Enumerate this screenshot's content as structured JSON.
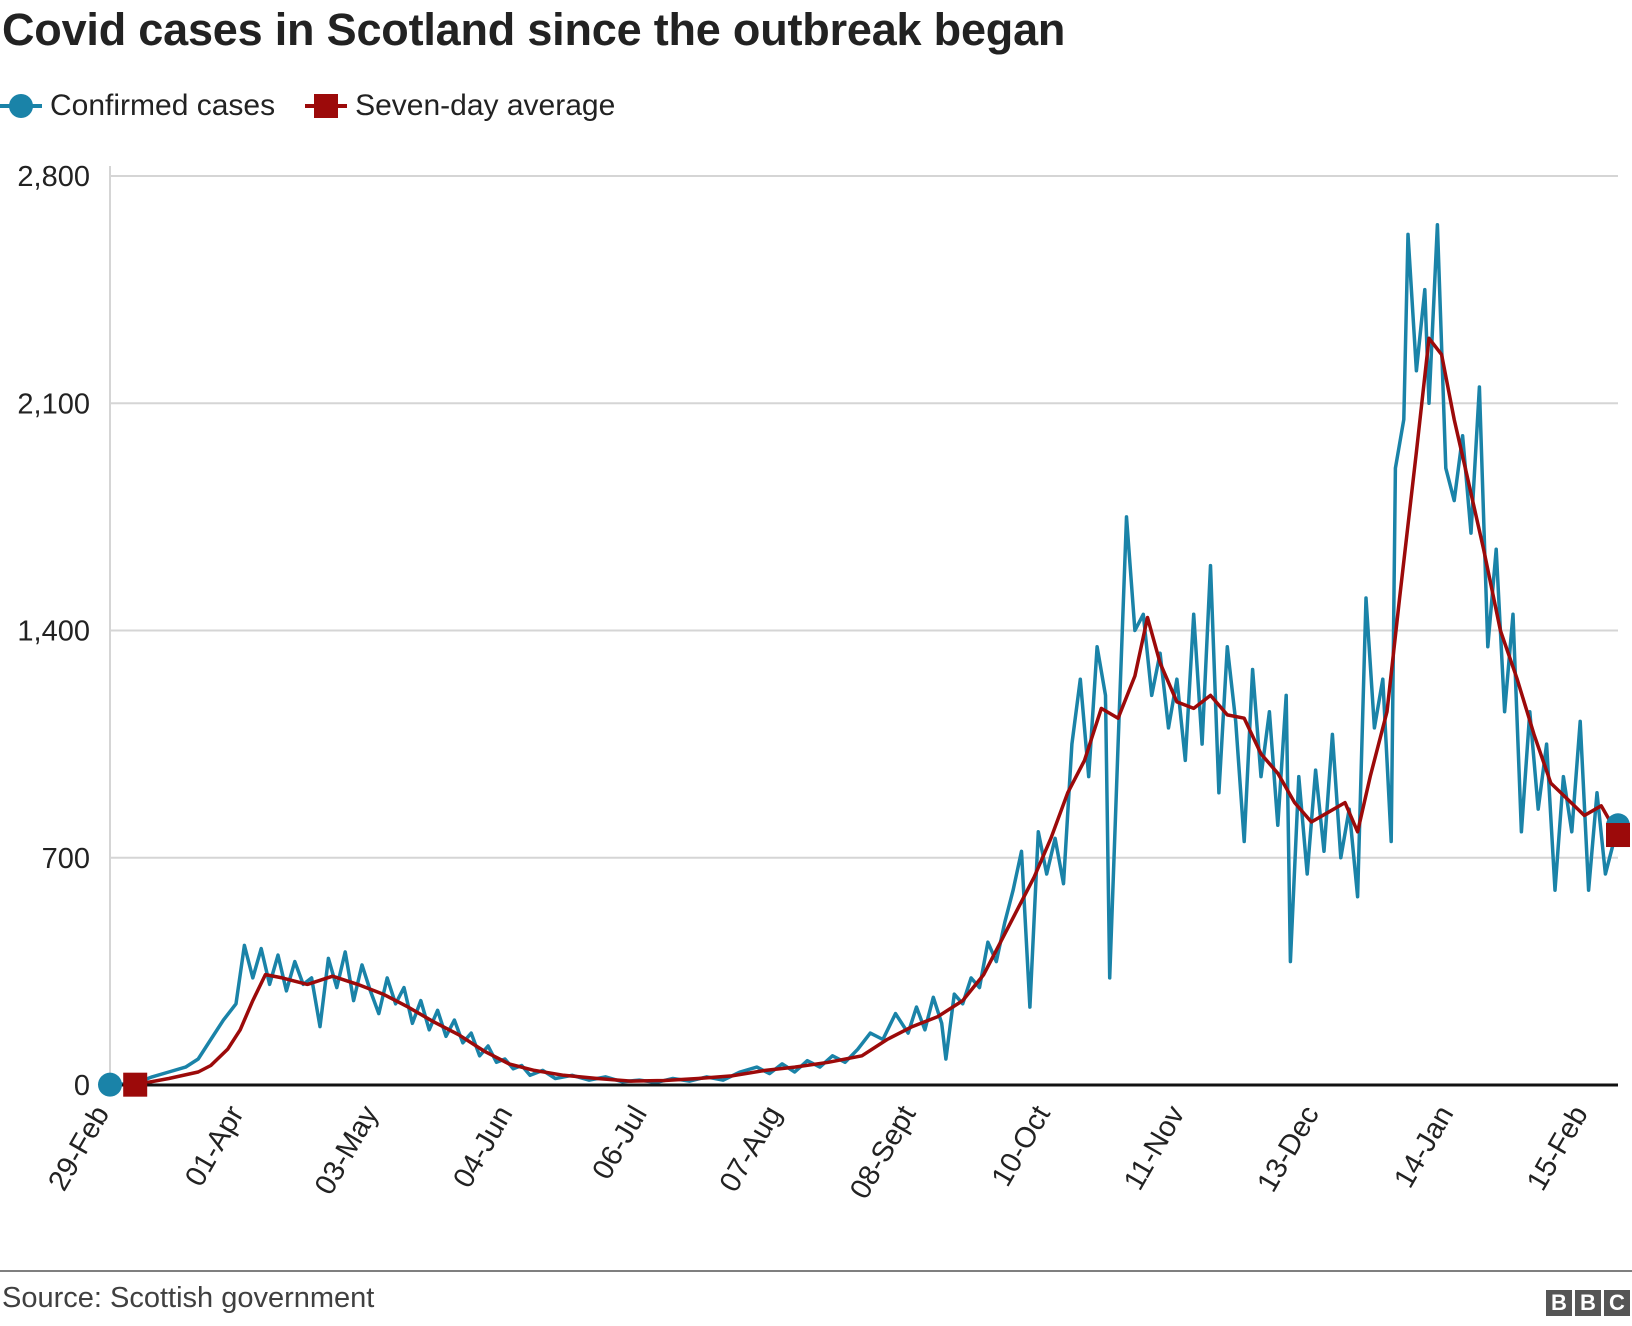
{
  "header": {
    "title": "Covid cases in Scotland since the outbreak began"
  },
  "footer": {
    "source": "Source: Scottish government",
    "logo_letters": [
      "B",
      "B",
      "C"
    ]
  },
  "colors": {
    "confirmed": "#1a83a8",
    "average": "#9c0a0a",
    "grid": "#d5d5d5",
    "baseline": "#111111"
  },
  "chart_data": {
    "type": "line",
    "title": "Covid cases in Scotland since the outbreak began",
    "xlabel": "",
    "ylabel": "",
    "ylim": [
      0,
      2800
    ],
    "yticks": [
      0,
      700,
      1400,
      2100,
      2800
    ],
    "ytick_labels": [
      "0",
      "700",
      "1,400",
      "2,100",
      "2,800"
    ],
    "xlim": [
      "2020-02-29",
      "2021-02-22"
    ],
    "xticks": [
      "2020-02-29",
      "2020-04-01",
      "2020-05-03",
      "2020-06-04",
      "2020-07-06",
      "2020-08-07",
      "2020-09-08",
      "2020-10-10",
      "2020-11-11",
      "2020-12-13",
      "2021-01-14",
      "2021-02-15"
    ],
    "xtick_labels": [
      "29-Feb",
      "01-Apr",
      "03-May",
      "04-Jun",
      "06-Jul",
      "07-Aug",
      "08-Sept",
      "10-Oct",
      "11-Nov",
      "13-Dec",
      "14-Jan",
      "15-Feb"
    ],
    "grid": true,
    "legend_position": "top-left",
    "series": [
      {
        "name": "Confirmed cases",
        "marker": "circle",
        "points": [
          [
            "2020-02-29",
            1
          ],
          [
            "2020-03-06",
            5
          ],
          [
            "2020-03-10",
            25
          ],
          [
            "2020-03-14",
            40
          ],
          [
            "2020-03-18",
            55
          ],
          [
            "2020-03-21",
            80
          ],
          [
            "2020-03-24",
            140
          ],
          [
            "2020-03-27",
            200
          ],
          [
            "2020-03-30",
            250
          ],
          [
            "2020-04-01",
            430
          ],
          [
            "2020-04-03",
            330
          ],
          [
            "2020-04-05",
            420
          ],
          [
            "2020-04-07",
            310
          ],
          [
            "2020-04-09",
            400
          ],
          [
            "2020-04-11",
            290
          ],
          [
            "2020-04-13",
            380
          ],
          [
            "2020-04-15",
            310
          ],
          [
            "2020-04-17",
            330
          ],
          [
            "2020-04-19",
            180
          ],
          [
            "2020-04-21",
            390
          ],
          [
            "2020-04-23",
            300
          ],
          [
            "2020-04-25",
            410
          ],
          [
            "2020-04-27",
            260
          ],
          [
            "2020-04-29",
            370
          ],
          [
            "2020-05-01",
            290
          ],
          [
            "2020-05-03",
            220
          ],
          [
            "2020-05-05",
            330
          ],
          [
            "2020-05-07",
            250
          ],
          [
            "2020-05-09",
            300
          ],
          [
            "2020-05-11",
            190
          ],
          [
            "2020-05-13",
            260
          ],
          [
            "2020-05-15",
            170
          ],
          [
            "2020-05-17",
            230
          ],
          [
            "2020-05-19",
            150
          ],
          [
            "2020-05-21",
            200
          ],
          [
            "2020-05-23",
            130
          ],
          [
            "2020-05-25",
            160
          ],
          [
            "2020-05-27",
            90
          ],
          [
            "2020-05-29",
            120
          ],
          [
            "2020-05-31",
            70
          ],
          [
            "2020-06-02",
            80
          ],
          [
            "2020-06-04",
            50
          ],
          [
            "2020-06-06",
            60
          ],
          [
            "2020-06-08",
            30
          ],
          [
            "2020-06-11",
            45
          ],
          [
            "2020-06-14",
            20
          ],
          [
            "2020-06-18",
            30
          ],
          [
            "2020-06-22",
            15
          ],
          [
            "2020-06-26",
            25
          ],
          [
            "2020-06-30",
            10
          ],
          [
            "2020-07-04",
            15
          ],
          [
            "2020-07-08",
            8
          ],
          [
            "2020-07-12",
            20
          ],
          [
            "2020-07-16",
            12
          ],
          [
            "2020-07-20",
            25
          ],
          [
            "2020-07-24",
            15
          ],
          [
            "2020-07-28",
            40
          ],
          [
            "2020-08-01",
            55
          ],
          [
            "2020-08-04",
            35
          ],
          [
            "2020-08-07",
            65
          ],
          [
            "2020-08-10",
            40
          ],
          [
            "2020-08-13",
            75
          ],
          [
            "2020-08-16",
            55
          ],
          [
            "2020-08-19",
            90
          ],
          [
            "2020-08-22",
            70
          ],
          [
            "2020-08-25",
            110
          ],
          [
            "2020-08-28",
            160
          ],
          [
            "2020-08-31",
            140
          ],
          [
            "2020-09-03",
            220
          ],
          [
            "2020-09-06",
            160
          ],
          [
            "2020-09-08",
            240
          ],
          [
            "2020-09-10",
            170
          ],
          [
            "2020-09-12",
            270
          ],
          [
            "2020-09-14",
            190
          ],
          [
            "2020-09-15",
            80
          ],
          [
            "2020-09-17",
            280
          ],
          [
            "2020-09-19",
            250
          ],
          [
            "2020-09-21",
            330
          ],
          [
            "2020-09-23",
            300
          ],
          [
            "2020-09-25",
            440
          ],
          [
            "2020-09-27",
            380
          ],
          [
            "2020-09-29",
            500
          ],
          [
            "2020-10-01",
            600
          ],
          [
            "2020-10-03",
            720
          ],
          [
            "2020-10-05",
            240
          ],
          [
            "2020-10-07",
            780
          ],
          [
            "2020-10-09",
            650
          ],
          [
            "2020-10-11",
            760
          ],
          [
            "2020-10-13",
            620
          ],
          [
            "2020-10-15",
            1050
          ],
          [
            "2020-10-17",
            1250
          ],
          [
            "2020-10-19",
            950
          ],
          [
            "2020-10-21",
            1350
          ],
          [
            "2020-10-23",
            1200
          ],
          [
            "2020-10-24",
            330
          ],
          [
            "2020-10-26",
            1050
          ],
          [
            "2020-10-28",
            1750
          ],
          [
            "2020-10-30",
            1400
          ],
          [
            "2020-11-01",
            1450
          ],
          [
            "2020-11-03",
            1200
          ],
          [
            "2020-11-05",
            1330
          ],
          [
            "2020-11-07",
            1100
          ],
          [
            "2020-11-09",
            1250
          ],
          [
            "2020-11-11",
            1000
          ],
          [
            "2020-11-13",
            1450
          ],
          [
            "2020-11-15",
            1050
          ],
          [
            "2020-11-17",
            1600
          ],
          [
            "2020-11-19",
            900
          ],
          [
            "2020-11-21",
            1350
          ],
          [
            "2020-11-23",
            1120
          ],
          [
            "2020-11-25",
            750
          ],
          [
            "2020-11-27",
            1280
          ],
          [
            "2020-11-29",
            950
          ],
          [
            "2020-12-01",
            1150
          ],
          [
            "2020-12-03",
            800
          ],
          [
            "2020-12-05",
            1200
          ],
          [
            "2020-12-06",
            380
          ],
          [
            "2020-12-08",
            950
          ],
          [
            "2020-12-10",
            650
          ],
          [
            "2020-12-12",
            970
          ],
          [
            "2020-12-14",
            720
          ],
          [
            "2020-12-16",
            1080
          ],
          [
            "2020-12-18",
            700
          ],
          [
            "2020-12-20",
            850
          ],
          [
            "2020-12-22",
            580
          ],
          [
            "2020-12-24",
            1500
          ],
          [
            "2020-12-26",
            1100
          ],
          [
            "2020-12-28",
            1250
          ],
          [
            "2020-12-30",
            750
          ],
          [
            "2020-12-31",
            1900
          ],
          [
            "2021-01-02",
            2050
          ],
          [
            "2021-01-03",
            2620
          ],
          [
            "2021-01-05",
            2200
          ],
          [
            "2021-01-07",
            2450
          ],
          [
            "2021-01-08",
            2100
          ],
          [
            "2021-01-10",
            2650
          ],
          [
            "2021-01-12",
            1900
          ],
          [
            "2021-01-14",
            1800
          ],
          [
            "2021-01-16",
            2000
          ],
          [
            "2021-01-18",
            1700
          ],
          [
            "2021-01-20",
            2150
          ],
          [
            "2021-01-22",
            1350
          ],
          [
            "2021-01-24",
            1650
          ],
          [
            "2021-01-26",
            1150
          ],
          [
            "2021-01-28",
            1450
          ],
          [
            "2021-01-30",
            780
          ],
          [
            "2021-02-01",
            1150
          ],
          [
            "2021-02-03",
            850
          ],
          [
            "2021-02-05",
            1050
          ],
          [
            "2021-02-07",
            600
          ],
          [
            "2021-02-09",
            950
          ],
          [
            "2021-02-11",
            780
          ],
          [
            "2021-02-13",
            1120
          ],
          [
            "2021-02-15",
            600
          ],
          [
            "2021-02-17",
            900
          ],
          [
            "2021-02-19",
            650
          ],
          [
            "2021-02-22",
            800
          ]
        ]
      },
      {
        "name": "Seven-day average",
        "marker": "square",
        "points": [
          [
            "2020-03-06",
            1
          ],
          [
            "2020-03-14",
            20
          ],
          [
            "2020-03-21",
            40
          ],
          [
            "2020-03-24",
            60
          ],
          [
            "2020-03-28",
            110
          ],
          [
            "2020-03-31",
            170
          ],
          [
            "2020-04-03",
            260
          ],
          [
            "2020-04-06",
            340
          ],
          [
            "2020-04-10",
            330
          ],
          [
            "2020-04-16",
            310
          ],
          [
            "2020-04-22",
            335
          ],
          [
            "2020-04-28",
            310
          ],
          [
            "2020-05-04",
            280
          ],
          [
            "2020-05-10",
            240
          ],
          [
            "2020-05-16",
            195
          ],
          [
            "2020-05-22",
            155
          ],
          [
            "2020-05-28",
            105
          ],
          [
            "2020-06-03",
            65
          ],
          [
            "2020-06-09",
            45
          ],
          [
            "2020-06-16",
            30
          ],
          [
            "2020-06-24",
            20
          ],
          [
            "2020-07-02",
            12
          ],
          [
            "2020-07-10",
            14
          ],
          [
            "2020-07-18",
            20
          ],
          [
            "2020-07-26",
            28
          ],
          [
            "2020-08-03",
            45
          ],
          [
            "2020-08-10",
            55
          ],
          [
            "2020-08-18",
            70
          ],
          [
            "2020-08-26",
            90
          ],
          [
            "2020-09-01",
            140
          ],
          [
            "2020-09-07",
            180
          ],
          [
            "2020-09-13",
            210
          ],
          [
            "2020-09-19",
            260
          ],
          [
            "2020-09-24",
            340
          ],
          [
            "2020-09-28",
            440
          ],
          [
            "2020-10-02",
            540
          ],
          [
            "2020-10-06",
            640
          ],
          [
            "2020-10-10",
            760
          ],
          [
            "2020-10-14",
            900
          ],
          [
            "2020-10-18",
            1000
          ],
          [
            "2020-10-22",
            1160
          ],
          [
            "2020-10-26",
            1130
          ],
          [
            "2020-10-30",
            1260
          ],
          [
            "2020-11-02",
            1440
          ],
          [
            "2020-11-05",
            1300
          ],
          [
            "2020-11-09",
            1180
          ],
          [
            "2020-11-13",
            1160
          ],
          [
            "2020-11-17",
            1200
          ],
          [
            "2020-11-21",
            1140
          ],
          [
            "2020-11-25",
            1130
          ],
          [
            "2020-11-29",
            1020
          ],
          [
            "2020-12-03",
            960
          ],
          [
            "2020-12-07",
            870
          ],
          [
            "2020-12-11",
            810
          ],
          [
            "2020-12-15",
            840
          ],
          [
            "2020-12-19",
            870
          ],
          [
            "2020-12-22",
            780
          ],
          [
            "2020-12-25",
            950
          ],
          [
            "2020-12-29",
            1150
          ],
          [
            "2021-01-01",
            1500
          ],
          [
            "2021-01-05",
            1950
          ],
          [
            "2021-01-08",
            2300
          ],
          [
            "2021-01-11",
            2250
          ],
          [
            "2021-01-14",
            2050
          ],
          [
            "2021-01-17",
            1880
          ],
          [
            "2021-01-21",
            1650
          ],
          [
            "2021-01-25",
            1400
          ],
          [
            "2021-01-29",
            1250
          ],
          [
            "2021-02-02",
            1080
          ],
          [
            "2021-02-06",
            930
          ],
          [
            "2021-02-10",
            880
          ],
          [
            "2021-02-14",
            830
          ],
          [
            "2021-02-18",
            860
          ],
          [
            "2021-02-22",
            770
          ]
        ]
      }
    ]
  }
}
